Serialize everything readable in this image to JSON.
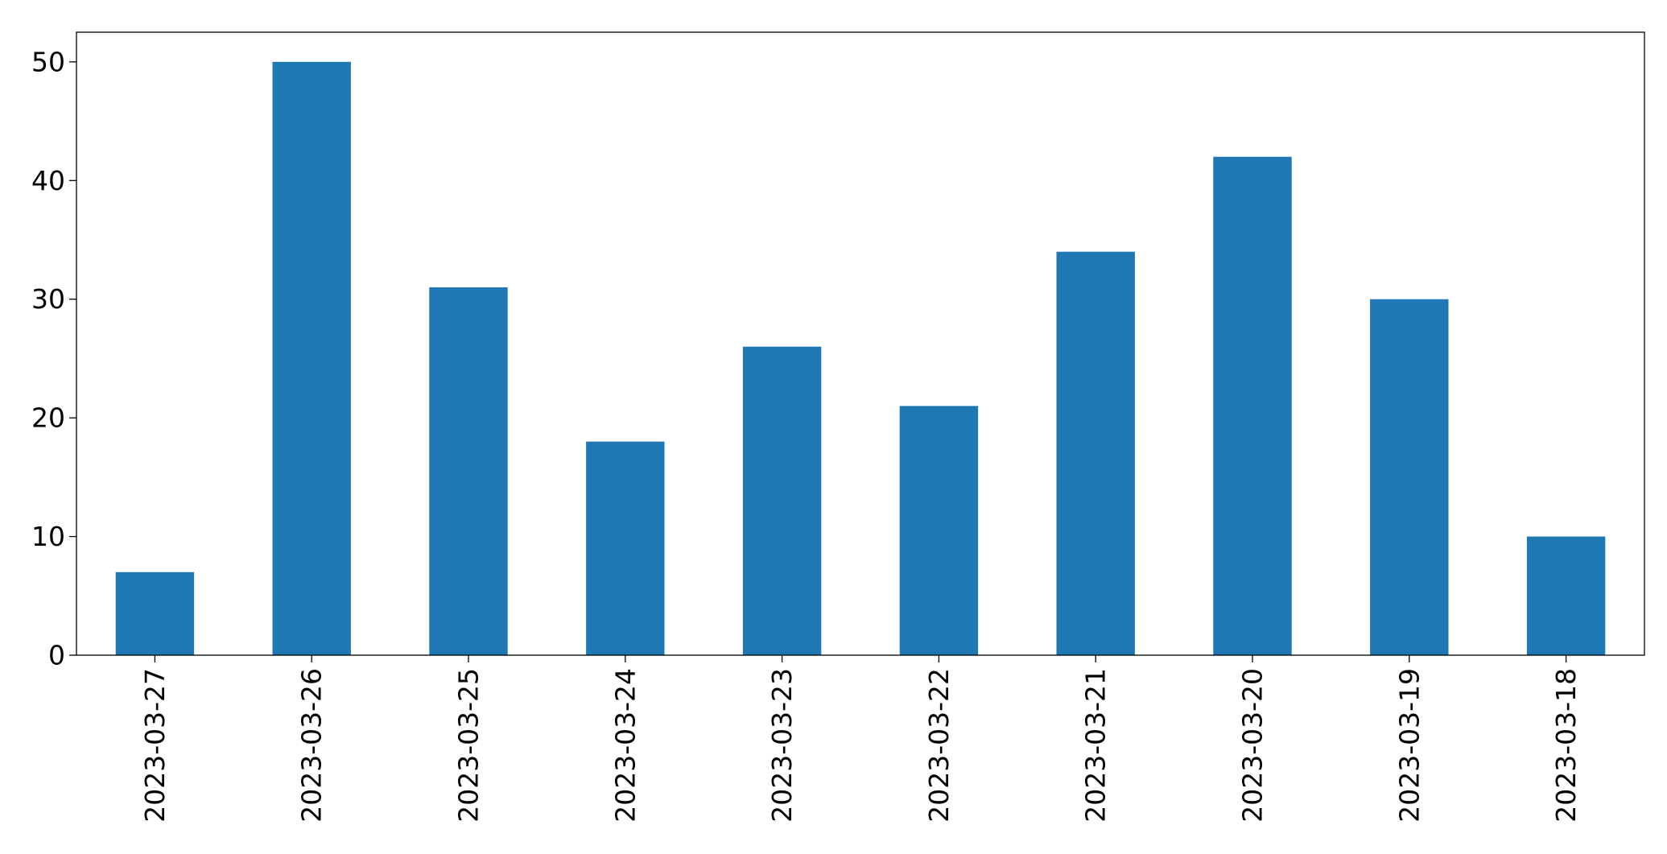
{
  "chart_data": {
    "type": "bar",
    "categories": [
      "2023-03-27",
      "2023-03-26",
      "2023-03-25",
      "2023-03-24",
      "2023-03-23",
      "2023-03-22",
      "2023-03-21",
      "2023-03-20",
      "2023-03-19",
      "2023-03-18"
    ],
    "values": [
      7,
      50,
      31,
      18,
      26,
      21,
      34,
      42,
      30,
      10
    ],
    "title": "",
    "xlabel": "",
    "ylabel": "",
    "ylim": [
      0,
      52.5
    ],
    "yticks": [
      0,
      10,
      20,
      30,
      40,
      50
    ],
    "ytick_labels": [
      "0",
      "10",
      "20",
      "30",
      "40",
      "50"
    ],
    "bar_color": "#1f77b4",
    "grid": false,
    "legend": "none"
  }
}
